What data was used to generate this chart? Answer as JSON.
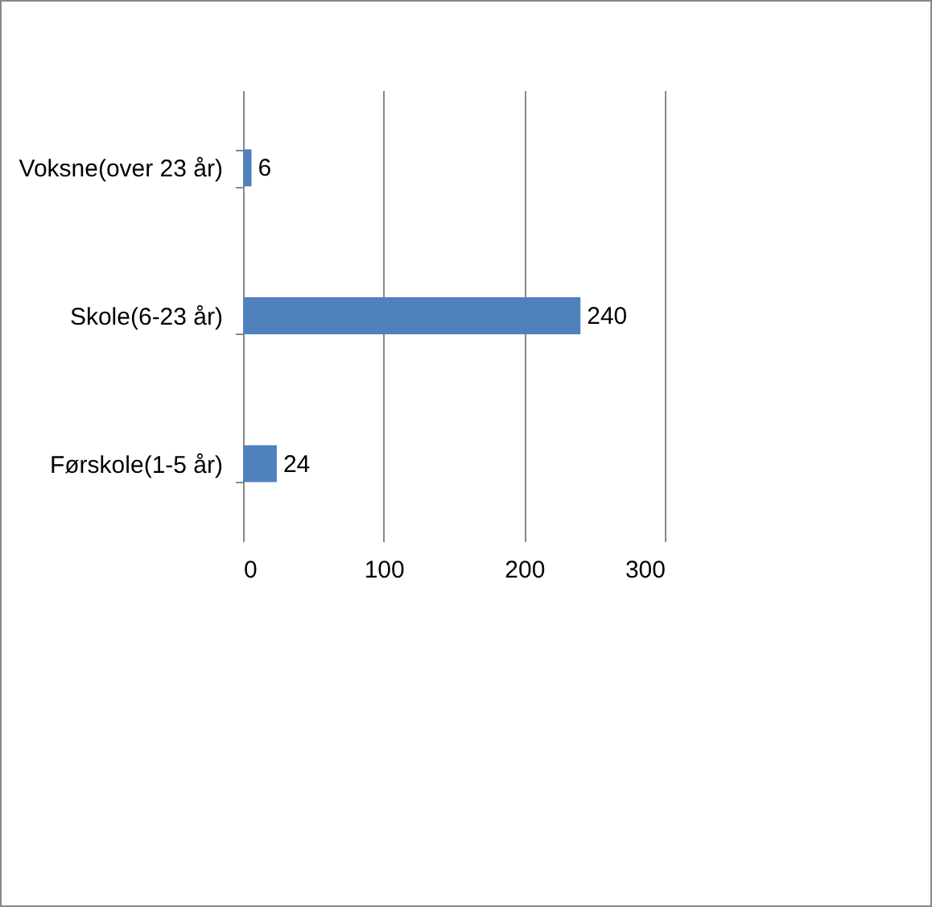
{
  "chart_data": {
    "type": "bar",
    "orientation": "horizontal",
    "categories": [
      "Voksne(over 23 år)",
      "Skole(6-23 år)",
      "Førskole(1-5 år)"
    ],
    "values": [
      6,
      240,
      24
    ],
    "color": "#4f81bd",
    "xlim": [
      0,
      300
    ],
    "xticks": [
      0,
      100,
      200,
      300
    ],
    "grid": "x",
    "data_labels": true
  }
}
